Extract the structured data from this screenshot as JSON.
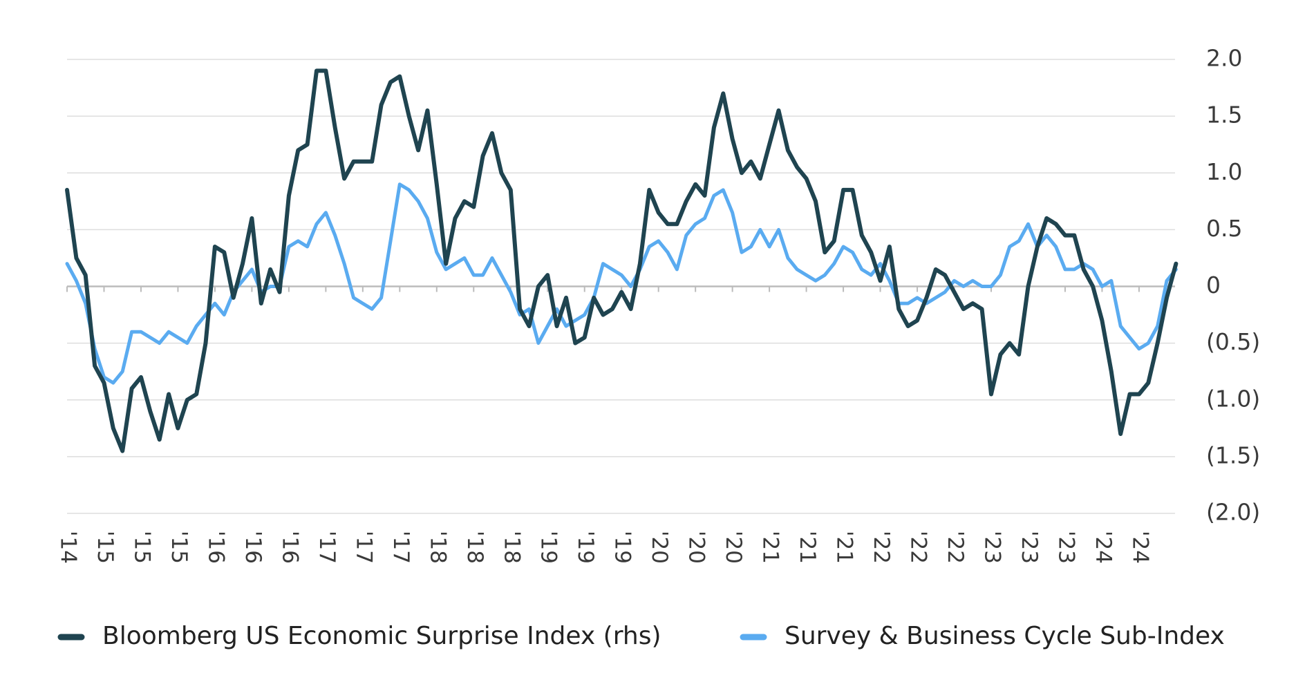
{
  "chart_data": {
    "type": "line",
    "categories": [
      "'14",
      null,
      null,
      null,
      "'15",
      null,
      null,
      null,
      "'15",
      null,
      null,
      null,
      "'15",
      null,
      null,
      null,
      "'16",
      null,
      null,
      null,
      "'16",
      null,
      null,
      null,
      "'16",
      null,
      null,
      null,
      "'17",
      null,
      null,
      null,
      "'17",
      null,
      null,
      null,
      "'17",
      null,
      null,
      null,
      "'18",
      null,
      null,
      null,
      "'18",
      null,
      null,
      null,
      "'18",
      null,
      null,
      null,
      "'19",
      null,
      null,
      null,
      "'19",
      null,
      null,
      null,
      "'19",
      null,
      null,
      null,
      "'20",
      null,
      null,
      null,
      "'20",
      null,
      null,
      null,
      "'20",
      null,
      null,
      null,
      "'21",
      null,
      null,
      null,
      "'21",
      null,
      null,
      null,
      "'21",
      null,
      null,
      null,
      "'22",
      null,
      null,
      null,
      "'22",
      null,
      null,
      null,
      "'22",
      null,
      null,
      null,
      "'23",
      null,
      null,
      null,
      "'23",
      null,
      null,
      null,
      "'23",
      null,
      null,
      null,
      "'24",
      null,
      null,
      null,
      "'24",
      null,
      null,
      null,
      null
    ],
    "series": [
      {
        "name": "Bloomberg US Economic Surprise Index (rhs)",
        "color": "#1f4450",
        "values": [
          0.85,
          0.25,
          0.1,
          -0.7,
          -0.85,
          -1.25,
          -1.45,
          -0.9,
          -0.8,
          -1.1,
          -1.35,
          -0.95,
          -1.25,
          -1.0,
          -0.95,
          -0.5,
          0.35,
          0.3,
          -0.1,
          0.2,
          0.6,
          -0.15,
          0.15,
          -0.05,
          0.8,
          1.2,
          1.25,
          1.9,
          1.9,
          1.4,
          0.95,
          1.1,
          1.1,
          1.1,
          1.6,
          1.8,
          1.85,
          1.5,
          1.2,
          1.55,
          0.9,
          0.2,
          0.6,
          0.75,
          0.7,
          1.15,
          1.35,
          1.0,
          0.85,
          -0.2,
          -0.35,
          0.0,
          0.1,
          -0.35,
          -0.1,
          -0.5,
          -0.45,
          -0.1,
          -0.25,
          -0.2,
          -0.05,
          -0.2,
          0.2,
          0.85,
          0.65,
          0.55,
          0.55,
          0.75,
          0.9,
          0.8,
          1.4,
          1.7,
          1.3,
          1.0,
          1.1,
          0.95,
          1.25,
          1.55,
          1.2,
          1.05,
          0.95,
          0.75,
          0.3,
          0.4,
          0.85,
          0.85,
          0.45,
          0.3,
          0.05,
          0.35,
          -0.2,
          -0.35,
          -0.3,
          -0.1,
          0.15,
          0.1,
          -0.05,
          -0.2,
          -0.15,
          -0.2,
          -0.95,
          -0.6,
          -0.5,
          -0.6,
          0.0,
          0.35,
          0.6,
          0.55,
          0.45,
          0.45,
          0.15,
          0.0,
          -0.3,
          -0.75,
          -1.3,
          -0.95,
          -0.95,
          -0.85,
          -0.5,
          -0.1,
          0.2
        ]
      },
      {
        "name": "Survey & Business Cycle Sub-Index",
        "color": "#5aabf0",
        "values": [
          0.2,
          0.05,
          -0.15,
          -0.55,
          -0.8,
          -0.85,
          -0.75,
          -0.4,
          -0.4,
          -0.45,
          -0.5,
          -0.4,
          -0.45,
          -0.5,
          -0.35,
          -0.25,
          -0.15,
          -0.25,
          -0.05,
          0.05,
          0.15,
          -0.05,
          0.0,
          0.0,
          0.35,
          0.4,
          0.35,
          0.55,
          0.65,
          0.45,
          0.2,
          -0.1,
          -0.15,
          -0.2,
          -0.1,
          0.4,
          0.9,
          0.85,
          0.75,
          0.6,
          0.3,
          0.15,
          0.2,
          0.25,
          0.1,
          0.1,
          0.25,
          0.1,
          -0.05,
          -0.25,
          -0.2,
          -0.5,
          -0.35,
          -0.2,
          -0.35,
          -0.3,
          -0.25,
          -0.1,
          0.2,
          0.15,
          0.1,
          0.0,
          0.15,
          0.35,
          0.4,
          0.3,
          0.15,
          0.45,
          0.55,
          0.6,
          0.8,
          0.85,
          0.65,
          0.3,
          0.35,
          0.5,
          0.35,
          0.5,
          0.25,
          0.15,
          0.1,
          0.05,
          0.1,
          0.2,
          0.35,
          0.3,
          0.15,
          0.1,
          0.2,
          0.05,
          -0.15,
          -0.15,
          -0.1,
          -0.15,
          -0.1,
          -0.05,
          0.05,
          0.0,
          0.05,
          0.0,
          0.0,
          0.1,
          0.35,
          0.4,
          0.55,
          0.35,
          0.45,
          0.35,
          0.15,
          0.15,
          0.2,
          0.15,
          0.0,
          0.05,
          -0.35,
          -0.45,
          -0.55,
          -0.5,
          -0.35,
          0.05,
          0.15
        ]
      }
    ],
    "ylim": [
      -2,
      2
    ],
    "yticks": [
      {
        "value": 2,
        "label": "2.0"
      },
      1.5,
      {
        "value": 1,
        "label": "1.0"
      },
      0.5,
      0,
      {
        "value": -0.5,
        "label": "(0.5)"
      },
      {
        "value": -1,
        "label": "(1.0)"
      },
      {
        "value": -1.5,
        "label": "(1.5)"
      },
      {
        "value": -2,
        "label": "(2.0)"
      }
    ],
    "grid": true,
    "legend": "bottom"
  }
}
